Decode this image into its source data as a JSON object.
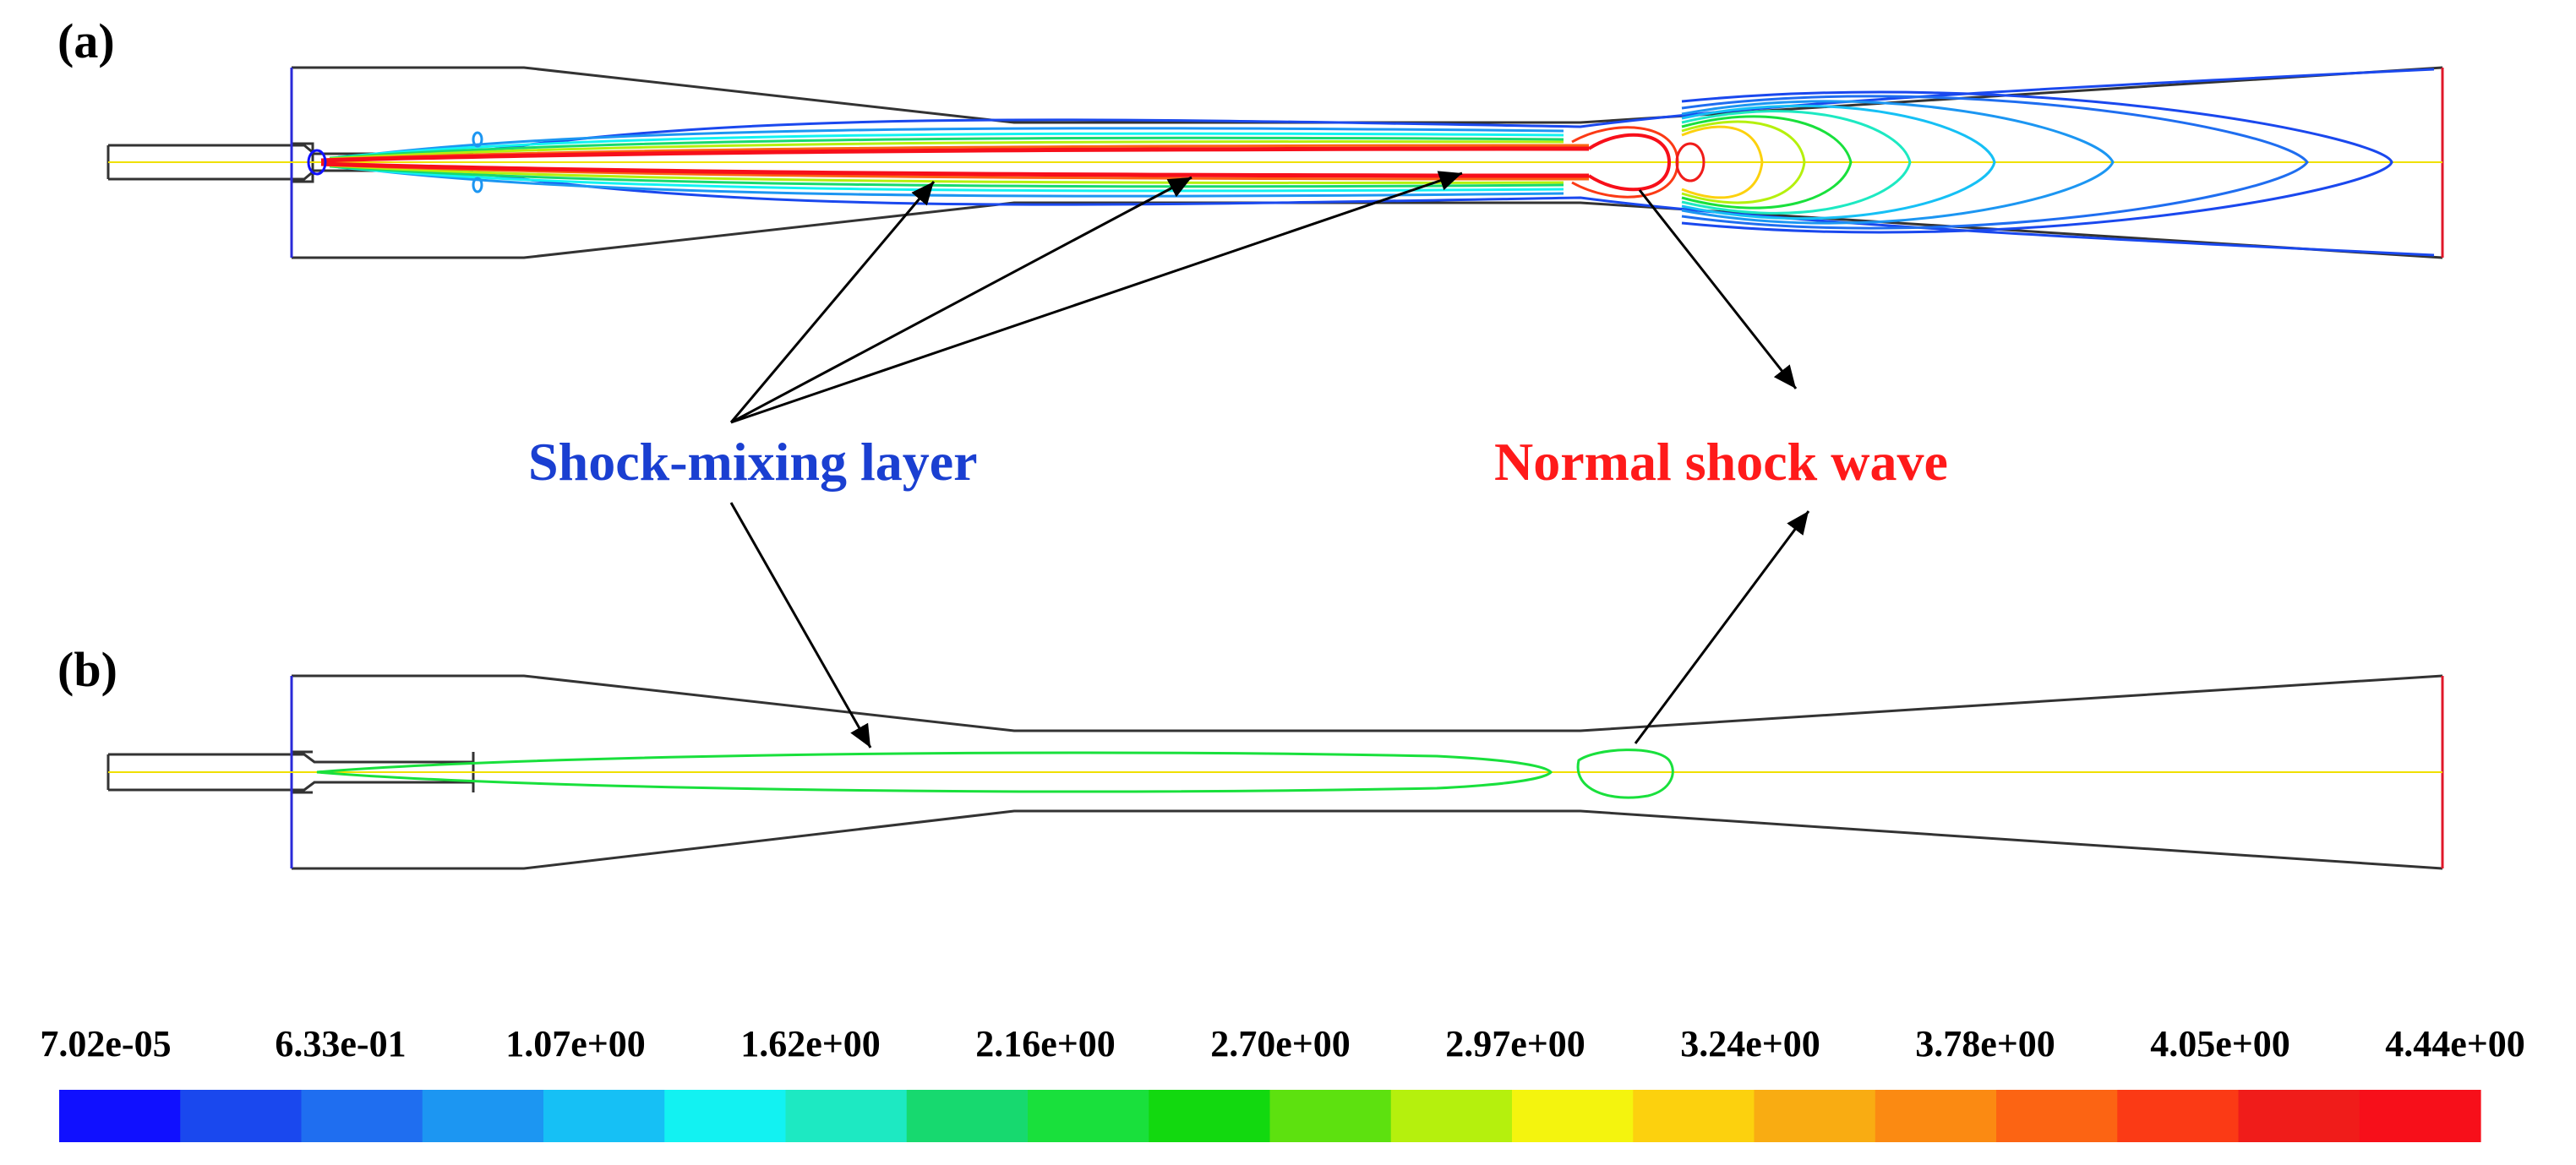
{
  "panels": [
    {
      "label": "(a)"
    },
    {
      "label": "(b)"
    }
  ],
  "annotations": {
    "shock_mixing": {
      "text": "Shock-mixing layer",
      "color": "#1a3fd1"
    },
    "normal_shock": {
      "text": "Normal shock wave",
      "color": "#ff1a1a"
    }
  },
  "colorbar": {
    "tick_labels": [
      "7.02e-05",
      "6.33e-01",
      "1.07e+00",
      "1.62e+00",
      "2.16e+00",
      "2.70e+00",
      "2.97e+00",
      "3.24e+00",
      "3.78e+00",
      "4.05e+00",
      "4.44e+00"
    ],
    "colors": [
      "#1010ff",
      "#1a48ee",
      "#1f6ef0",
      "#1c96f2",
      "#16c0f5",
      "#12f2f2",
      "#1de9c2",
      "#17d96f",
      "#19e03c",
      "#12d90f",
      "#5de10f",
      "#b5f00d",
      "#f4f40e",
      "#fcd10e",
      "#f9ac12",
      "#fb8a12",
      "#fc6413",
      "#fb3a15",
      "#f01c1a",
      "#f70f1a"
    ]
  },
  "colors": {
    "outline": "#111111",
    "inlet_edge": "#2a2ad8",
    "outlet_edge": "#e0182a",
    "axis": "#f0e000",
    "arrow": "#000000"
  }
}
